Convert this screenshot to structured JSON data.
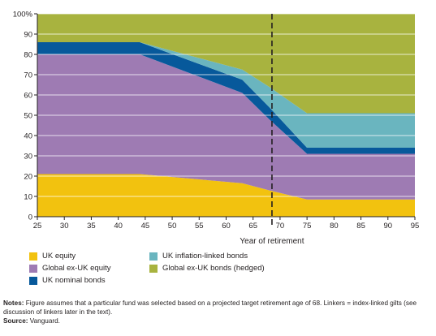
{
  "chart_data": {
    "type": "area",
    "stacked": true,
    "xlabel": "Year of retirement",
    "ylabel": "",
    "x": [
      25,
      44,
      63,
      68,
      75,
      95
    ],
    "xticks": [
      25,
      30,
      35,
      40,
      45,
      50,
      55,
      60,
      65,
      70,
      75,
      80,
      85,
      90,
      95
    ],
    "yticks": [
      0,
      10,
      20,
      30,
      40,
      50,
      60,
      70,
      80,
      90,
      100
    ],
    "ytick_labels": [
      "0",
      "10",
      "20",
      "30",
      "40",
      "50",
      "60",
      "70",
      "80",
      "90",
      "100%"
    ],
    "xlim": [
      25,
      95
    ],
    "ylim": [
      0,
      100
    ],
    "grid": "horizontal",
    "reference_line": {
      "x": 68.5,
      "style": "dashed"
    },
    "series": [
      {
        "name": "UK equity",
        "color": "#f2c20f",
        "values": [
          21,
          21,
          16.5,
          13,
          8.5,
          8.5
        ]
      },
      {
        "name": "Global ex-UK equity",
        "color": "#9e7bb3",
        "values": [
          59,
          59,
          44.5,
          35,
          22.5,
          22.5
        ]
      },
      {
        "name": "UK nominal bonds",
        "color": "#07599b",
        "values": [
          6,
          6,
          6.5,
          6,
          3,
          3
        ]
      },
      {
        "name": "UK inflation-linked bonds",
        "color": "#6ab5bf",
        "values": [
          0,
          0,
          5,
          10,
          17,
          17
        ]
      },
      {
        "name": "Global ex-UK bonds (hedged)",
        "color": "#a8b33f",
        "values": [
          14,
          14,
          27.5,
          36,
          49,
          49
        ]
      }
    ]
  },
  "legend": {
    "items": [
      {
        "label": "UK equity",
        "color": "#f2c20f"
      },
      {
        "label": "Global ex-UK equity",
        "color": "#9e7bb3"
      },
      {
        "label": "UK nominal bonds",
        "color": "#07599b"
      },
      {
        "label": "UK inflation-linked bonds",
        "color": "#6ab5bf"
      },
      {
        "label": "Global ex-UK bonds (hedged)",
        "color": "#a8b33f"
      }
    ]
  },
  "notes": {
    "notes_label": "Notes:",
    "notes_text": "Figure assumes that a particular fund was selected based on a projected target retirement age of 68. Linkers = index-linked gilts (see discussion of linkers later in the text).",
    "source_label": "Source:",
    "source_text": "Vanguard."
  }
}
